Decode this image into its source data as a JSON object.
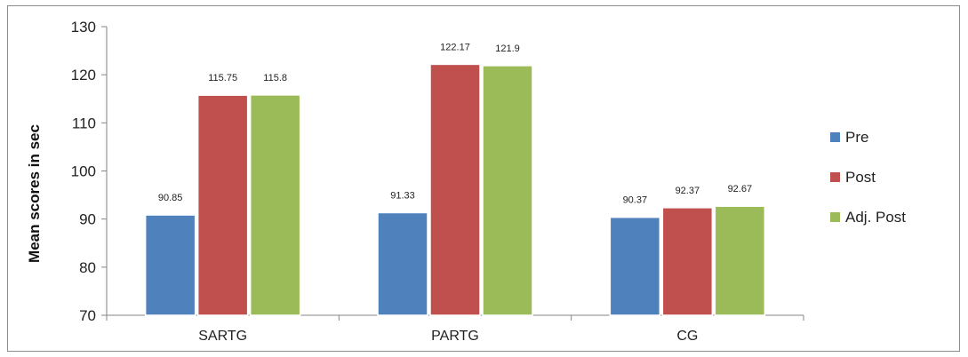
{
  "chart_data": {
    "type": "bar",
    "title": "",
    "xlabel": "",
    "ylabel": "Mean scores in sec",
    "ylim": [
      70,
      130
    ],
    "yticks": [
      70,
      80,
      90,
      100,
      110,
      120,
      130
    ],
    "categories": [
      "SARTG",
      "PARTG",
      "CG"
    ],
    "series": [
      {
        "name": "Pre",
        "color": "#4f81bd",
        "values": [
          90.85,
          91.33,
          90.37
        ],
        "labels": [
          "90.85",
          "91.33",
          "90.37"
        ]
      },
      {
        "name": "Post",
        "color": "#c0504d",
        "values": [
          115.75,
          122.17,
          92.37
        ],
        "labels": [
          "115.75",
          "122.17",
          "92.37"
        ]
      },
      {
        "name": "Adj. Post",
        "color": "#9bbb59",
        "values": [
          115.8,
          121.9,
          92.67
        ],
        "labels": [
          "115.8",
          "121.9",
          "92.67"
        ]
      }
    ],
    "grid": false,
    "legend_position": "right"
  }
}
